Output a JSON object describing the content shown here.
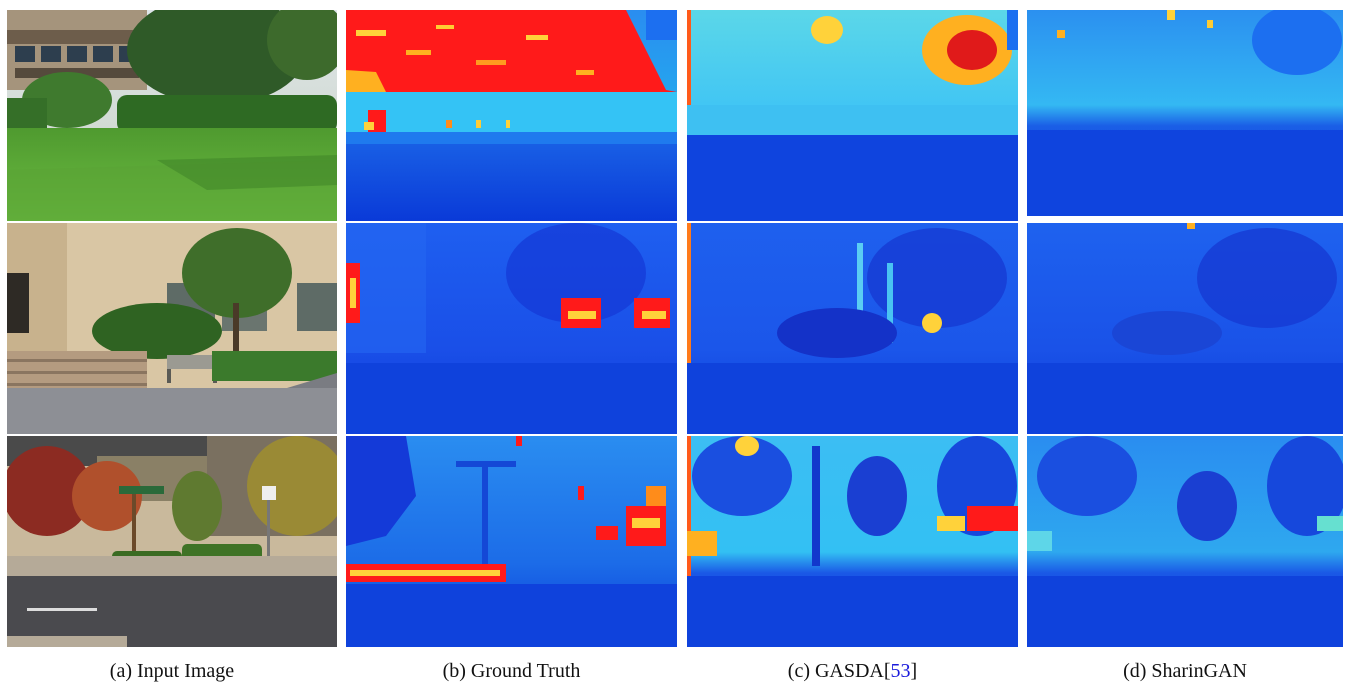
{
  "captions": {
    "a": {
      "label": "(a) Input Image"
    },
    "b": {
      "label": "(b) Ground Truth"
    },
    "c": {
      "prefix": "(c) GASDA[",
      "ref": "53",
      "suffix": "]"
    },
    "d": {
      "label": "(d) SharinGAN"
    }
  },
  "colors": {
    "depth_far": "#ff1a1a",
    "depth_mid": "#33c8ff",
    "depth_near": "#0a3ad8",
    "grass": "#57a93a",
    "pavement": "#8d8f95",
    "citation": "#1a1adb"
  }
}
